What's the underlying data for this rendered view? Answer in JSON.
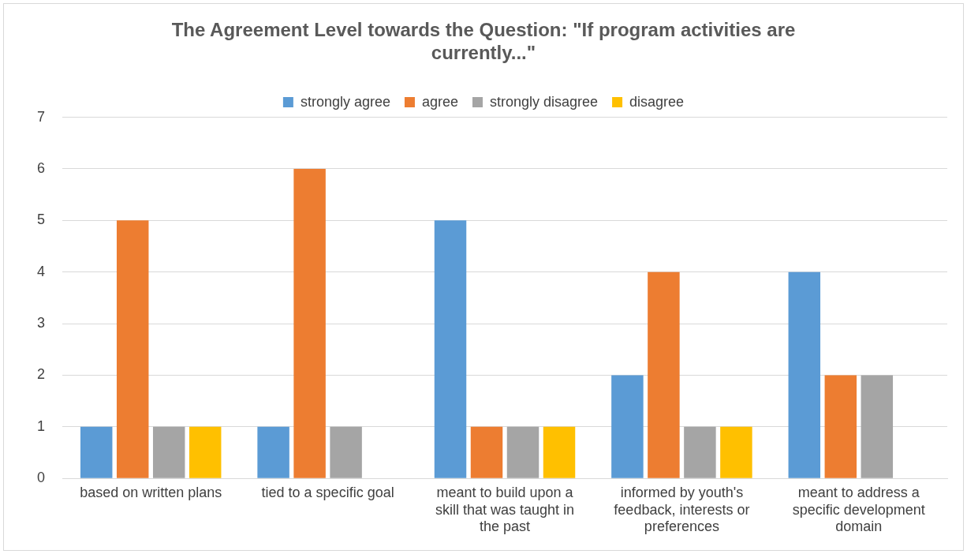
{
  "chart_data": {
    "type": "bar",
    "title": "The Agreement Level towards the Question: \"If program activities are currently...\"",
    "categories": [
      "based on written plans",
      "tied to a specific goal",
      "meant to build upon a skill that was taught in the past",
      "informed by youth's feedback, interests or preferences",
      "meant to address a specific development domain"
    ],
    "series": [
      {
        "name": "strongly agree",
        "color": "#5b9bd5",
        "values": [
          1,
          1,
          5,
          2,
          4
        ]
      },
      {
        "name": "agree",
        "color": "#ed7d31",
        "values": [
          5,
          6,
          1,
          4,
          2
        ]
      },
      {
        "name": "strongly disagree",
        "color": "#a5a5a5",
        "values": [
          1,
          1,
          1,
          1,
          2
        ]
      },
      {
        "name": "disagree",
        "color": "#ffc000",
        "values": [
          1,
          null,
          1,
          1,
          null
        ]
      }
    ],
    "ylim": [
      0,
      7
    ],
    "yticks": [
      0,
      1,
      2,
      3,
      4,
      5,
      6,
      7
    ],
    "grid": "y",
    "legend": "top"
  }
}
